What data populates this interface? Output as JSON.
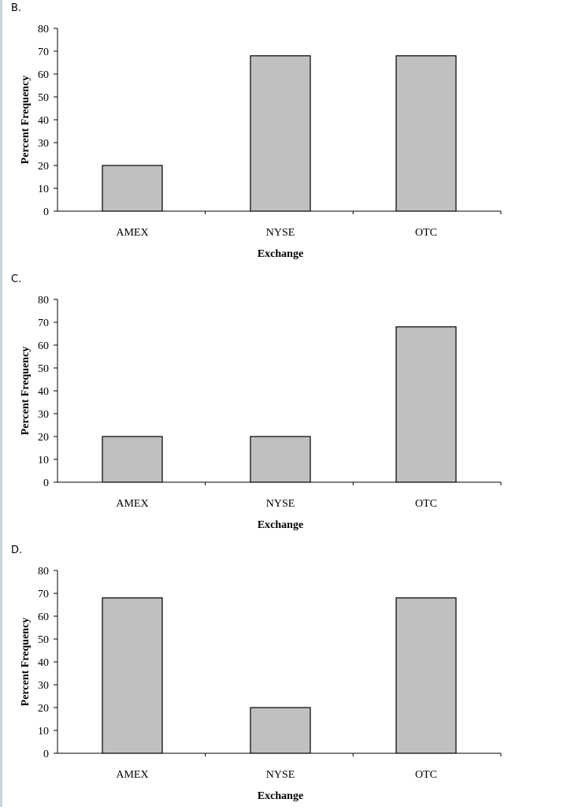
{
  "chart_data": [
    {
      "type": "bar",
      "panel_label": "B.",
      "categories": [
        "AMEX",
        "NYSE",
        "OTC"
      ],
      "values": [
        20,
        68,
        68
      ],
      "xlabel": "Exchange",
      "ylabel": "Percent Frequency",
      "ylim": [
        0,
        80
      ],
      "yticks": [
        0,
        10,
        20,
        30,
        40,
        50,
        60,
        70,
        80
      ],
      "grid": false,
      "bar_color": "#c0c0c0"
    },
    {
      "type": "bar",
      "panel_label": "C.",
      "categories": [
        "AMEX",
        "NYSE",
        "OTC"
      ],
      "values": [
        20,
        20,
        68
      ],
      "xlabel": "Exchange",
      "ylabel": "Percent Frequency",
      "ylim": [
        0,
        80
      ],
      "yticks": [
        0,
        10,
        20,
        30,
        40,
        50,
        60,
        70,
        80
      ],
      "grid": false,
      "bar_color": "#c0c0c0"
    },
    {
      "type": "bar",
      "panel_label": "D.",
      "categories": [
        "AMEX",
        "NYSE",
        "OTC"
      ],
      "values": [
        68,
        20,
        68
      ],
      "xlabel": "Exchange",
      "ylabel": "Percent Frequency",
      "ylim": [
        0,
        80
      ],
      "yticks": [
        0,
        10,
        20,
        30,
        40,
        50,
        60,
        70,
        80
      ],
      "grid": false,
      "bar_color": "#c0c0c0"
    }
  ]
}
